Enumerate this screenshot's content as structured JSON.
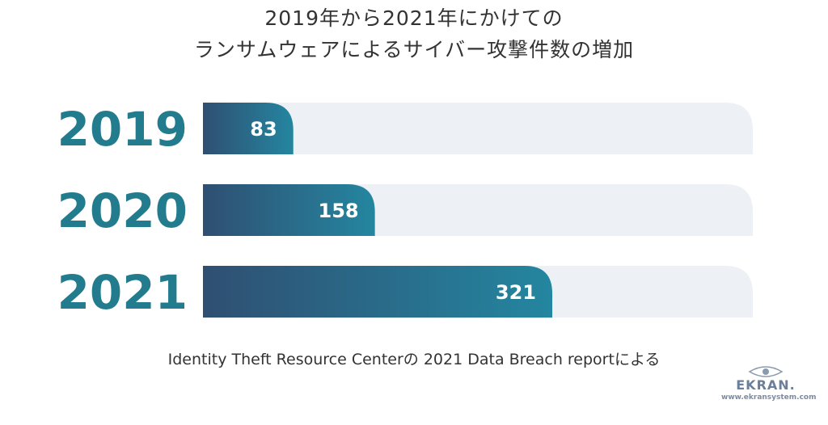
{
  "title_line1": "2019年から2021年にかけての",
  "title_line2": "ランサムウェアによるサイバー攻撃件数の増加",
  "source": "Identity Theft Resource Centerの 2021 Data Breach reportによる",
  "logo": {
    "name": "EKRAN.",
    "url": "www.ekransystem.com",
    "icon": "eye-icon"
  },
  "colors": {
    "track": "#edf0f4",
    "bar_start": "#2f4f72",
    "bar_end": "#2486a0",
    "year_label": "#227c8e",
    "value_label": "#ffffff"
  },
  "chart_data": {
    "type": "bar",
    "orientation": "horizontal",
    "categories": [
      "2019",
      "2020",
      "2021"
    ],
    "values": [
      83,
      158,
      321
    ],
    "xlim": [
      0,
      480
    ]
  }
}
